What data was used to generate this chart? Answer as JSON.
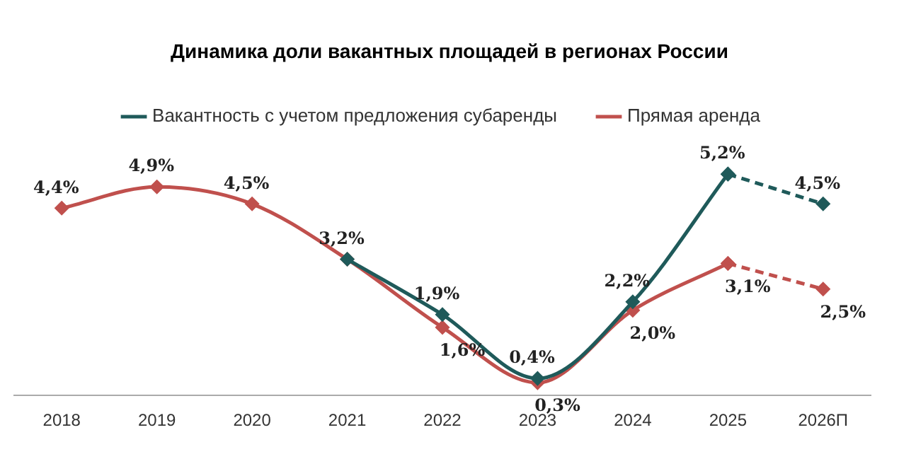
{
  "chart_data": {
    "type": "line",
    "title": "Динамика доли вакантных площадей в регионах России",
    "categories": [
      "2018",
      "2019",
      "2020",
      "2021",
      "2022",
      "2023",
      "2024",
      "2025",
      "2026П"
    ],
    "legend": "top",
    "marker": "diamond",
    "grid": false,
    "tick_labels": "x",
    "series": [
      {
        "name": "Вакантность с учетом предложения субаренды",
        "color": "#1f5a5a",
        "values": [
          null,
          null,
          null,
          3.2,
          1.9,
          0.4,
          2.2,
          5.2,
          null
        ],
        "value_labels": [
          null,
          null,
          null,
          "3,2%",
          "1,9%",
          "0,4%",
          "2,2%",
          "5,2%",
          null
        ]
      },
      {
        "color": "#1f5a5a",
        "line_style": "dashed",
        "values": [
          null,
          null,
          null,
          null,
          null,
          null,
          null,
          5.2,
          4.5
        ],
        "value_labels": [
          null,
          null,
          null,
          null,
          null,
          null,
          null,
          null,
          "4,5%"
        ]
      },
      {
        "name": "Прямая аренда",
        "color": "#c0504d",
        "values": [
          4.4,
          4.9,
          4.5,
          3.2,
          1.6,
          0.3,
          2.0,
          3.1,
          null
        ],
        "value_labels": [
          "4,4%",
          "4,9%",
          "4,5%",
          null,
          "1,6%",
          "0,3%",
          "2,0%",
          "3,1%",
          null
        ]
      },
      {
        "color": "#c0504d",
        "line_style": "dashed",
        "values": [
          null,
          null,
          null,
          null,
          null,
          null,
          null,
          3.1,
          2.5
        ],
        "value_labels": [
          null,
          null,
          null,
          null,
          null,
          null,
          null,
          null,
          "2,5%"
        ]
      }
    ]
  }
}
